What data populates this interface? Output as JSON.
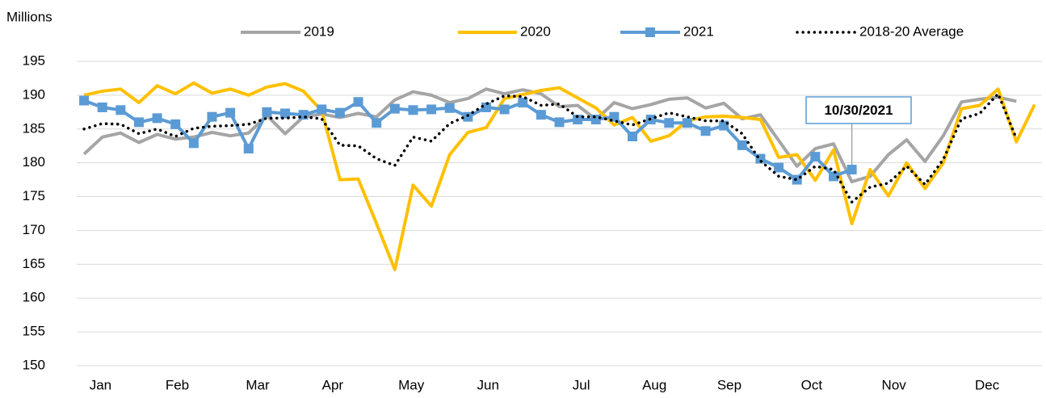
{
  "chart_data": {
    "type": "line",
    "y_axis_label": "Millions",
    "annotation": "10/30/2021",
    "x": [
      1,
      2,
      3,
      4,
      5,
      6,
      7,
      8,
      9,
      10,
      11,
      12,
      13,
      14,
      15,
      16,
      17,
      18,
      19,
      20,
      21,
      22,
      23,
      24,
      25,
      26,
      27,
      28,
      29,
      30,
      31,
      32,
      33,
      34,
      35,
      36,
      37,
      38,
      39,
      40,
      41,
      42,
      43,
      44,
      45,
      46,
      47,
      48,
      49,
      50,
      51,
      52,
      53
    ],
    "xlim": [
      0.6,
      53.4
    ],
    "xticks": [
      {
        "value": 1.9,
        "label": "Jan"
      },
      {
        "value": 6.1,
        "label": "Feb"
      },
      {
        "value": 10.5,
        "label": "Mar"
      },
      {
        "value": 14.6,
        "label": "Apr"
      },
      {
        "value": 18.9,
        "label": "May"
      },
      {
        "value": 23.1,
        "label": "Jun"
      },
      {
        "value": 28.2,
        "label": "Jul"
      },
      {
        "value": 32.2,
        "label": "Aug"
      },
      {
        "value": 36.3,
        "label": "Sep"
      },
      {
        "value": 40.8,
        "label": "Oct"
      },
      {
        "value": 45.3,
        "label": "Nov"
      },
      {
        "value": 50.4,
        "label": "Dec"
      }
    ],
    "ylim": [
      150,
      195
    ],
    "yticks": [
      150,
      155,
      160,
      165,
      170,
      175,
      180,
      185,
      190,
      195
    ],
    "grid": true,
    "legend": "top",
    "series": [
      {
        "name": "2019",
        "color": "#a5a5a5",
        "style": "solid",
        "values": [
          181.3,
          183.8,
          184.4,
          183,
          184.2,
          183.5,
          183.8,
          184.5,
          184,
          184.4,
          187,
          184.3,
          186.8,
          187.2,
          186.7,
          187.3,
          186.8,
          189.3,
          190.5,
          190,
          188.9,
          189.5,
          190.9,
          190.2,
          190.8,
          190.2,
          188.3,
          188.5,
          186.4,
          188.9,
          188,
          188.6,
          189.4,
          189.6,
          188.1,
          188.8,
          186.5,
          187.1,
          183.3,
          179.5,
          182.1,
          182.8,
          177.2,
          178,
          181.2,
          183.4,
          180.2,
          184,
          189,
          189.4,
          189.7,
          189.1,
          null
        ]
      },
      {
        "name": "2020",
        "color": "#ffc000",
        "style": "solid",
        "values": [
          190,
          190.6,
          190.9,
          188.9,
          191.4,
          190.2,
          191.8,
          190.3,
          190.9,
          190,
          191.2,
          191.7,
          190.6,
          187.7,
          177.5,
          177.6,
          171,
          164.2,
          176.7,
          173.6,
          181.2,
          184.5,
          185.2,
          189.5,
          190.1,
          190.7,
          191.1,
          189.6,
          188.1,
          185.6,
          186.7,
          183.2,
          184,
          186.2,
          186.8,
          186.9,
          186.7,
          186.4,
          180.8,
          181.2,
          177.4,
          181.9,
          171,
          179,
          175.1,
          180,
          176.2,
          180,
          188,
          188.5,
          190.9,
          183.1,
          188.6
        ]
      },
      {
        "name": "2021",
        "color": "#5b9bd5",
        "style": "solid",
        "marker": "square",
        "values": [
          189.2,
          188.2,
          187.8,
          186,
          186.6,
          185.7,
          182.9,
          186.8,
          187.4,
          182.1,
          187.5,
          187.3,
          187.1,
          187.9,
          187.4,
          189,
          185.9,
          188,
          187.8,
          187.9,
          188.1,
          186.8,
          188.2,
          187.9,
          188.9,
          187.1,
          186,
          186.4,
          186.4,
          186.8,
          183.9,
          186.4,
          185.9,
          185.9,
          184.7,
          185.5,
          182.6,
          180.6,
          179.3,
          177.5,
          180.9,
          178,
          179,
          null,
          null,
          null,
          null,
          null,
          null,
          null,
          null,
          null,
          null
        ]
      },
      {
        "name": "2018-20 Average",
        "color": "#000000",
        "style": "dot",
        "values": [
          185,
          185.8,
          185.7,
          184.3,
          185,
          183.9,
          185.1,
          185.4,
          185.5,
          185.7,
          186.6,
          186.6,
          186.8,
          186.5,
          182.6,
          182.5,
          180.6,
          179.6,
          183.8,
          183.2,
          185.8,
          187,
          188.7,
          189.9,
          189.8,
          188.5,
          188.7,
          186.8,
          186.8,
          186.2,
          185.6,
          186.5,
          187.4,
          186.8,
          186.2,
          186.2,
          184.3,
          180.3,
          178,
          177.5,
          179.5,
          179,
          174.2,
          176.4,
          177,
          179.5,
          176.8,
          180.5,
          186.5,
          187.3,
          190.2,
          183.6,
          null
        ]
      }
    ]
  }
}
